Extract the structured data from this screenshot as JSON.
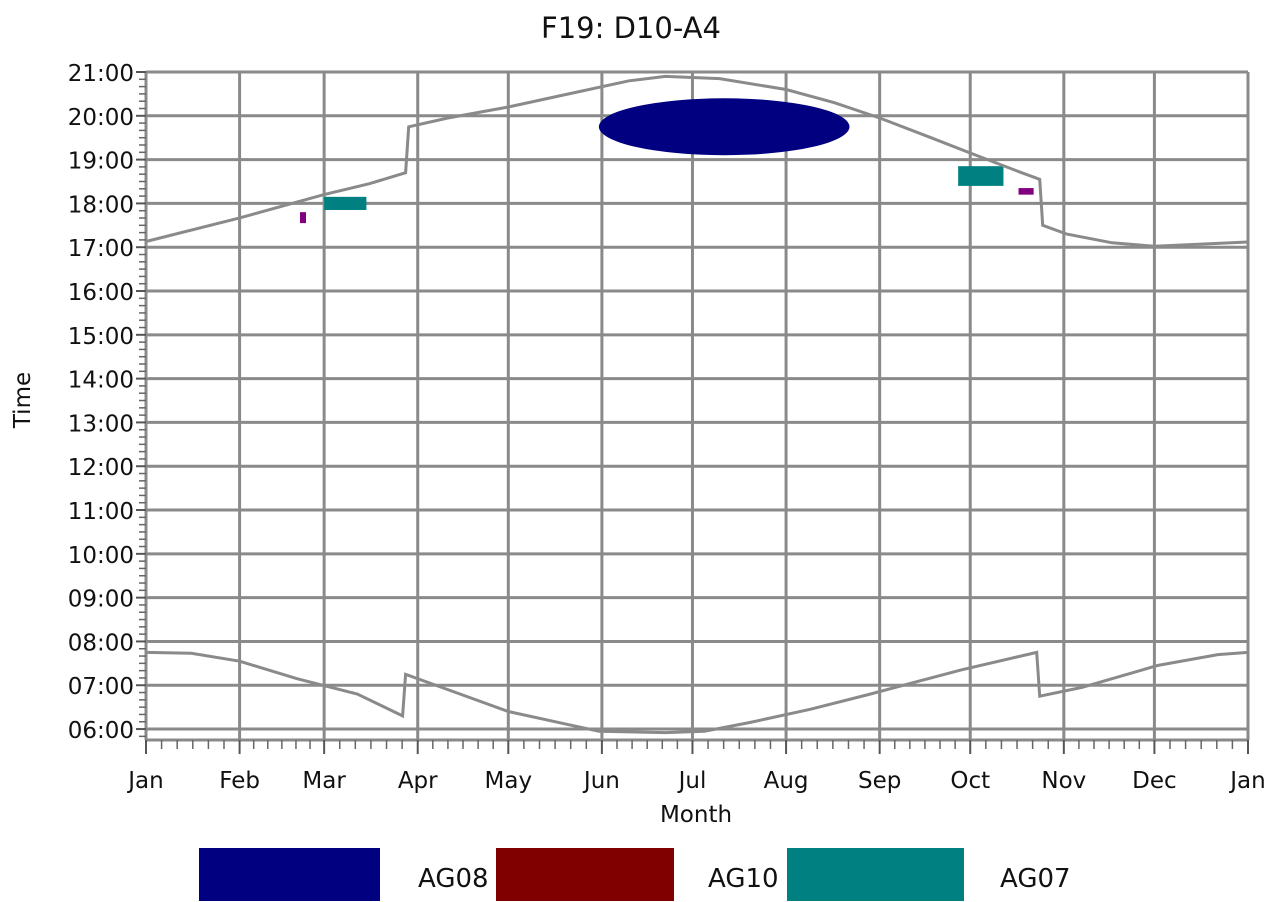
{
  "chart_data": {
    "type": "area",
    "title": "F19: D10-A4",
    "xlabel": "Month",
    "ylabel": "Time",
    "x_ticks": [
      "Jan",
      "Feb",
      "Mar",
      "Apr",
      "May",
      "Jun",
      "Jul",
      "Aug",
      "Sep",
      "Oct",
      "Nov",
      "Dec",
      "Jan"
    ],
    "y_ticks": [
      "06:00",
      "07:00",
      "08:00",
      "09:00",
      "10:00",
      "11:00",
      "12:00",
      "13:00",
      "14:00",
      "15:00",
      "16:00",
      "17:00",
      "18:00",
      "19:00",
      "20:00",
      "21:00"
    ],
    "x_range_days": [
      0,
      365
    ],
    "y_range_hours": [
      5.75,
      21.0
    ],
    "grid": true,
    "legend_position": "bottom",
    "colors": {
      "grid": "#8a8a8a",
      "boundary_line": "#8a8a8a",
      "AG08": "#000080",
      "AG10": "#800000",
      "AG07": "#008080",
      "AG10_marks": "#800080"
    },
    "series": [
      {
        "name": "AG08",
        "color": "#000080",
        "shape": "ellipse",
        "day_range": [
          150,
          233
        ],
        "hour_range": [
          19.1,
          20.4
        ]
      },
      {
        "name": "AG10",
        "color": "#800080",
        "patches": [
          {
            "day_range": [
              51,
              53
            ],
            "hour_range": [
              17.55,
              17.8
            ]
          },
          {
            "day_range": [
              289,
              294
            ],
            "hour_range": [
              18.2,
              18.35
            ]
          }
        ]
      },
      {
        "name": "AG07",
        "color": "#008080",
        "patches": [
          {
            "day_range": [
              59,
              73
            ],
            "hour_range": [
              17.85,
              18.15
            ]
          },
          {
            "day_range": [
              269,
              284
            ],
            "hour_range": [
              18.4,
              18.85
            ]
          }
        ]
      }
    ],
    "boundary_lines": {
      "upper_hours": [
        [
          0,
          17.13
        ],
        [
          31,
          17.67
        ],
        [
          59,
          18.2
        ],
        [
          74,
          18.45
        ],
        [
          86,
          18.7
        ],
        [
          87,
          19.75
        ],
        [
          100,
          19.95
        ],
        [
          120,
          20.2
        ],
        [
          140,
          20.5
        ],
        [
          160,
          20.8
        ],
        [
          172,
          20.9
        ],
        [
          190,
          20.85
        ],
        [
          212,
          20.6
        ],
        [
          228,
          20.3
        ],
        [
          243,
          19.95
        ],
        [
          260,
          19.5
        ],
        [
          273,
          19.15
        ],
        [
          290,
          18.7
        ],
        [
          296,
          18.55
        ],
        [
          297,
          17.5
        ],
        [
          305,
          17.3
        ],
        [
          320,
          17.1
        ],
        [
          334,
          17.02
        ],
        [
          365,
          17.12
        ]
      ],
      "lower_hours": [
        [
          0,
          7.75
        ],
        [
          15,
          7.73
        ],
        [
          31,
          7.55
        ],
        [
          50,
          7.15
        ],
        [
          70,
          6.8
        ],
        [
          85,
          6.3
        ],
        [
          86,
          7.25
        ],
        [
          100,
          6.9
        ],
        [
          120,
          6.4
        ],
        [
          140,
          6.1
        ],
        [
          150,
          5.95
        ],
        [
          172,
          5.92
        ],
        [
          185,
          5.95
        ],
        [
          200,
          6.15
        ],
        [
          220,
          6.45
        ],
        [
          240,
          6.8
        ],
        [
          270,
          7.35
        ],
        [
          295,
          7.75
        ],
        [
          296,
          6.75
        ],
        [
          310,
          6.95
        ],
        [
          335,
          7.45
        ],
        [
          355,
          7.7
        ],
        [
          365,
          7.75
        ]
      ]
    },
    "legend": [
      {
        "label": "AG08",
        "color": "#000080"
      },
      {
        "label": "AG10",
        "color": "#800000"
      },
      {
        "label": "AG07",
        "color": "#008080"
      }
    ]
  }
}
